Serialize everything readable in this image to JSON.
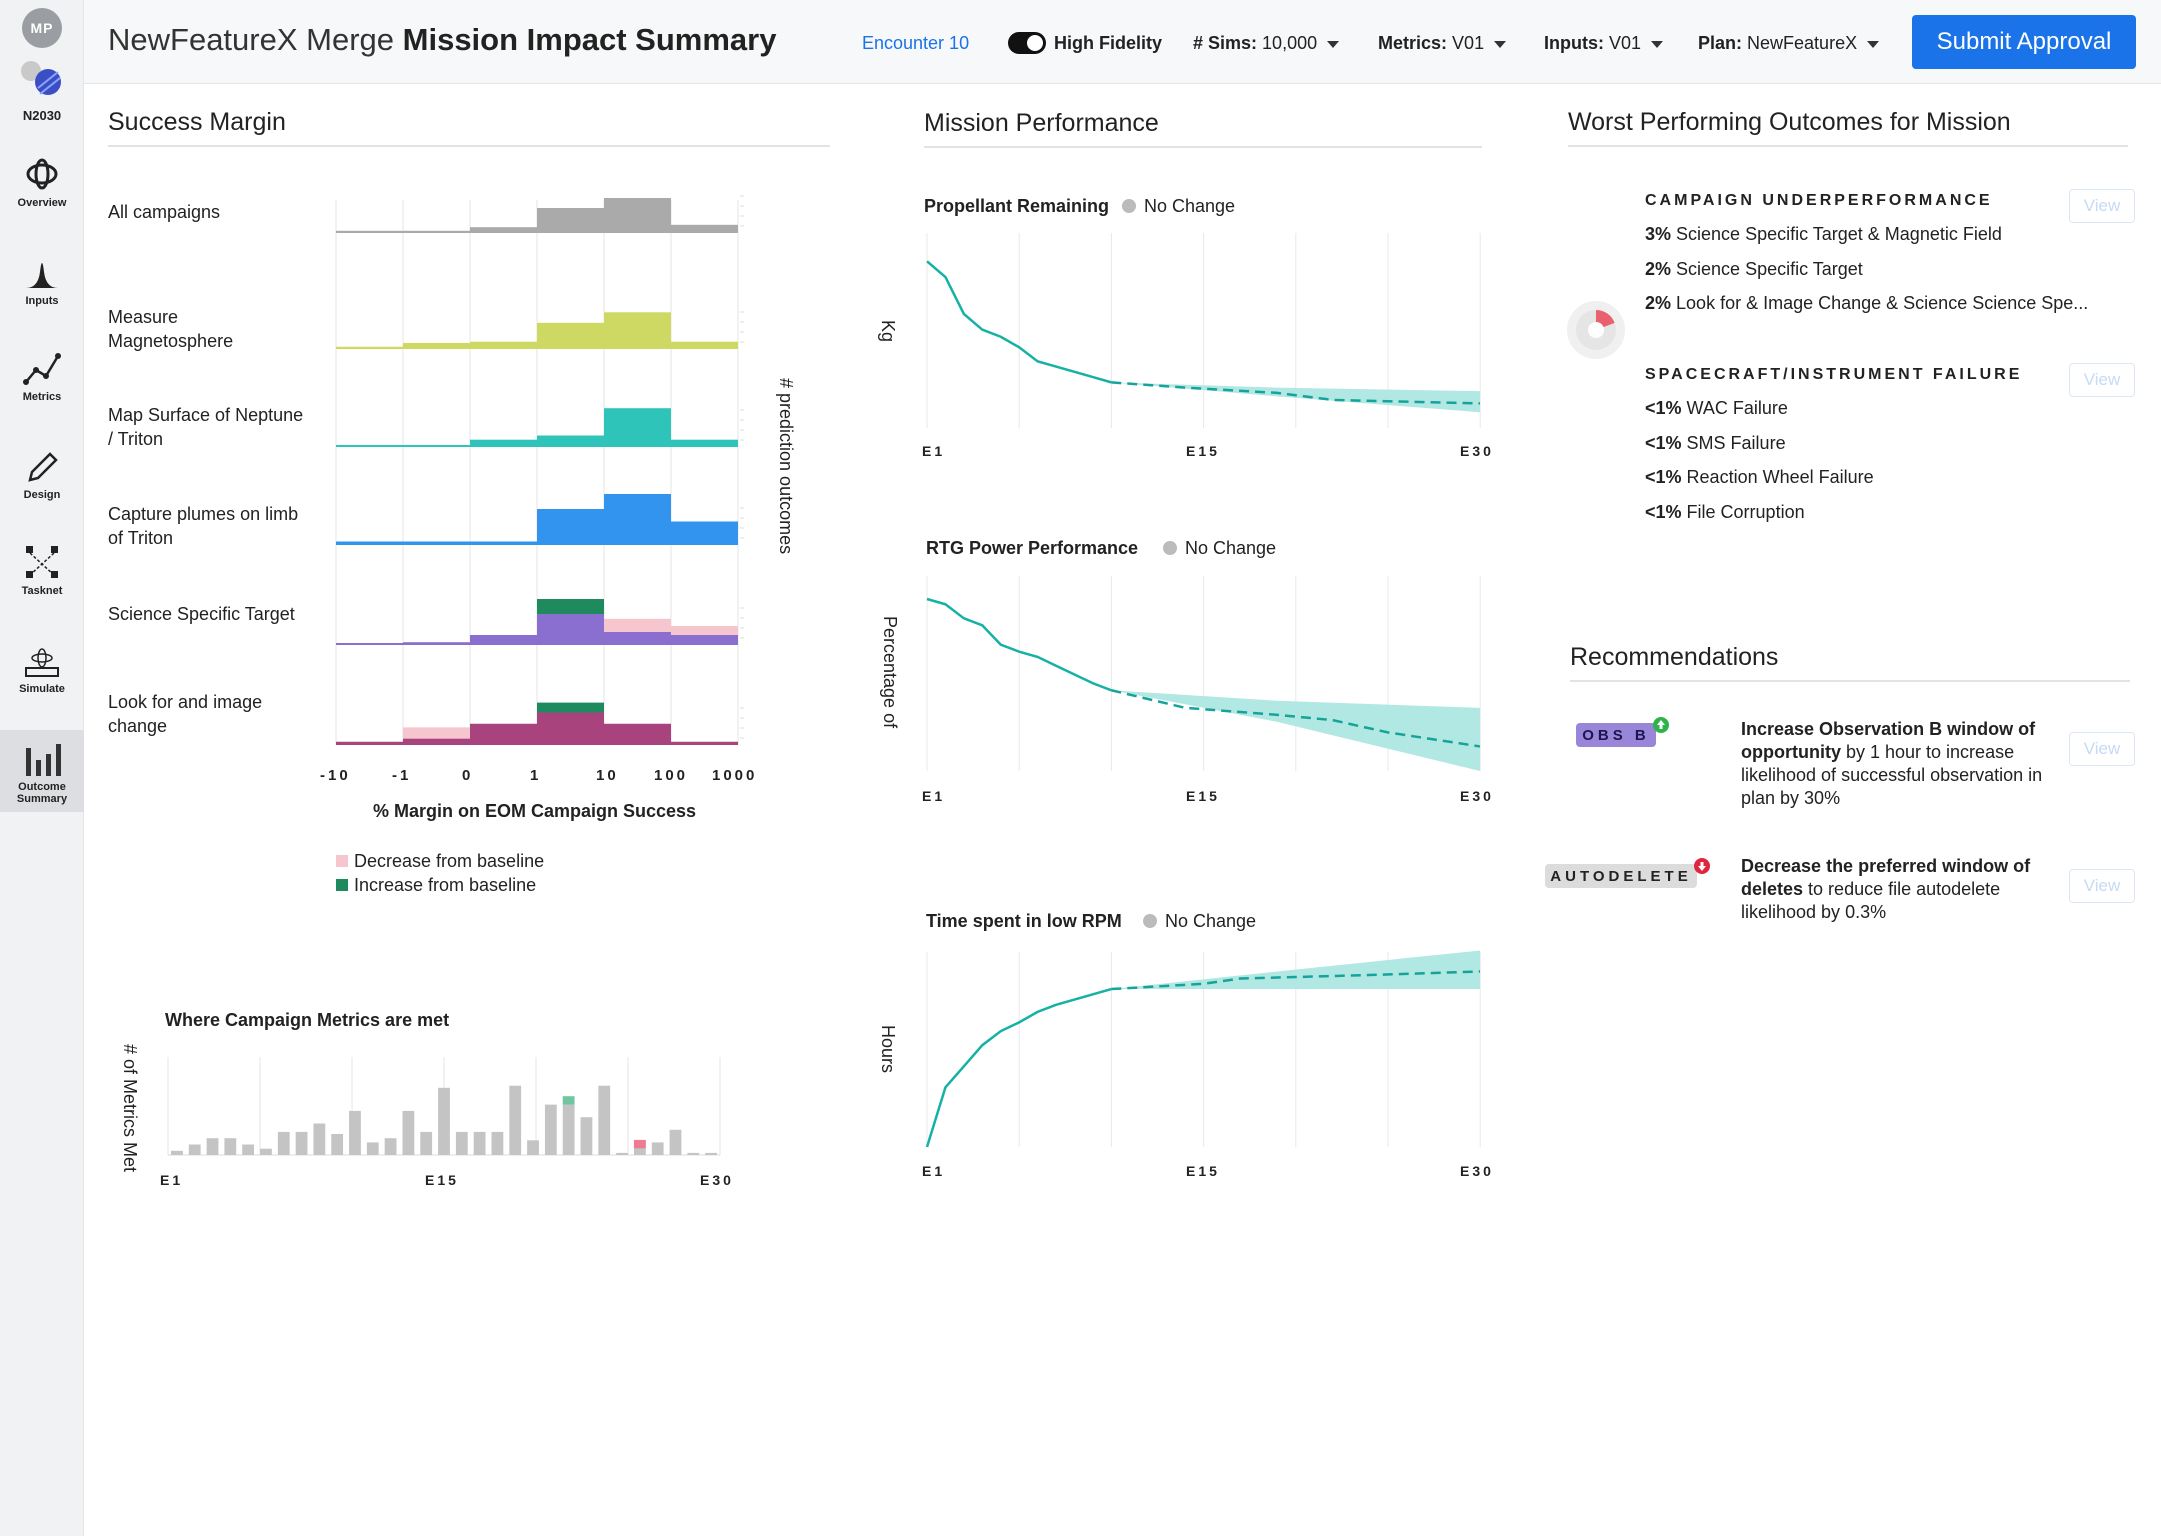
{
  "user": {
    "initials": "MP"
  },
  "project": {
    "name": "N2030"
  },
  "nav": [
    {
      "label": "Overview",
      "icon": "overview-icon"
    },
    {
      "label": "Inputs",
      "icon": "distribution-icon"
    },
    {
      "label": "Metrics",
      "icon": "line-chart-icon"
    },
    {
      "label": "Design",
      "icon": "pencil-icon"
    },
    {
      "label": "Tasknet",
      "icon": "network-icon"
    },
    {
      "label": "Simulate",
      "icon": "simulate-icon"
    },
    {
      "label": "Outcome Summary",
      "icon": "bar-chart-icon",
      "active": true
    }
  ],
  "header": {
    "title_light": "NewFeatureX Merge",
    "title_bold": "Mission Impact Summary",
    "encounter": "Encounter 10",
    "fidelity_label": "High Fidelity",
    "sims_label": "# Sims:",
    "sims_value": "10,000",
    "metrics_label": "Metrics:",
    "metrics_value": "V01",
    "inputs_label": "Inputs:",
    "inputs_value": "V01",
    "plan_label": "Plan:",
    "plan_value": "NewFeatureX",
    "submit_label": "Submit Approval"
  },
  "success_margin": {
    "title": "Success Margin",
    "xlabel": "% Margin on EOM Campaign Success",
    "ylabel": "# prediction outcomes",
    "x_ticks": [
      "-10",
      "-1",
      "0",
      "1",
      "10",
      "100",
      "1000"
    ],
    "legend": {
      "decrease": "Decrease from baseline",
      "increase": "Increase from baseline",
      "decrease_color": "#f6c6cf",
      "increase_color": "#1e8a5e"
    },
    "rows": [
      {
        "label": "All campaigns",
        "color": "#aaaaaa",
        "values": [
          0.03,
          0.03,
          0.12,
          0.6,
          0.85,
          0.18
        ],
        "inc": [
          0,
          0,
          0,
          0,
          0,
          0
        ],
        "dec": [
          0,
          0,
          0,
          0,
          0,
          0
        ]
      },
      {
        "label": "Measure Magnetosphere",
        "color": "#cdd962",
        "values": [
          0.03,
          0.12,
          0.15,
          0.6,
          0.85,
          0.15
        ],
        "inc": [
          0,
          0,
          0,
          0,
          0,
          0
        ],
        "dec": [
          0,
          0,
          0,
          0,
          0,
          0
        ]
      },
      {
        "label": "Map Surface of Neptune / Triton",
        "color": "#2fc4b9",
        "values": [
          0,
          0,
          0.15,
          0.25,
          0.9,
          0.15
        ],
        "inc": [
          0,
          0,
          0,
          0,
          0,
          0
        ],
        "dec": [
          0,
          0,
          0,
          0,
          0,
          0
        ]
      },
      {
        "label": "Capture plumes on limb of Triton",
        "color": "#3394ef",
        "values": [
          0.05,
          0.05,
          0.05,
          0.7,
          1.0,
          0.45
        ],
        "inc": [
          0,
          0,
          0,
          0,
          0,
          0
        ],
        "dec": [
          0,
          0,
          0,
          0,
          0,
          0
        ]
      },
      {
        "label": "Science Specific Target",
        "color": "#8b6fd0",
        "values": [
          0,
          0.03,
          0.15,
          0.5,
          0.2,
          0.15
        ],
        "inc": [
          0,
          0,
          0,
          0.25,
          0,
          0
        ],
        "dec": [
          0,
          0,
          0,
          0,
          0.22,
          0.15
        ]
      },
      {
        "label": "Look for and image change",
        "color": "#a8437e",
        "values": [
          0.05,
          0.12,
          0.45,
          0.7,
          0.45,
          0.05
        ],
        "inc": [
          0,
          0,
          0,
          0.22,
          0,
          0
        ],
        "dec": [
          0,
          0.25,
          0,
          0,
          0,
          0
        ]
      }
    ]
  },
  "campaign_metrics": {
    "title": "Where Campaign Metrics are met",
    "ylabel": "# of Metrics Met",
    "x_ticks": [
      "E1",
      "E15",
      "E30"
    ],
    "values": [
      1,
      2.5,
      4,
      4,
      2.5,
      1.5,
      5.5,
      5.5,
      7.5,
      5,
      10.5,
      3,
      4,
      10.5,
      5.5,
      16,
      5.5,
      5.5,
      5.5,
      16.5,
      3.5,
      12,
      12,
      9,
      16.5,
      0.5,
      3.5,
      3,
      6,
      0.5,
      0.5
    ],
    "inc": [
      0,
      0,
      0,
      0,
      0,
      0,
      0,
      0,
      0,
      0,
      0,
      0,
      0,
      0,
      0,
      0,
      0,
      0,
      0,
      0,
      0,
      0,
      2,
      0,
      0,
      0,
      0,
      0,
      0,
      0,
      0
    ],
    "dec": [
      0,
      0,
      0,
      0,
      0,
      0,
      0,
      0,
      0,
      0,
      0,
      0,
      0,
      0,
      0,
      0,
      0,
      0,
      0,
      0,
      0,
      0,
      0,
      0,
      0,
      0,
      2,
      0,
      0,
      0,
      0
    ]
  },
  "mission_performance": {
    "title": "Mission Performance",
    "x_ticks": [
      "E1",
      "E15",
      "E30"
    ],
    "charts": [
      {
        "title": "Propellant Remaining",
        "status": "No Change",
        "ylabel": "Kg",
        "actual": [
          [
            1,
            0.95
          ],
          [
            2,
            0.86
          ],
          [
            3,
            0.65
          ],
          [
            4,
            0.56
          ],
          [
            5,
            0.52
          ],
          [
            6,
            0.46
          ],
          [
            7,
            0.38
          ],
          [
            8,
            0.35
          ],
          [
            9,
            0.32
          ],
          [
            10,
            0.29
          ],
          [
            11,
            0.26
          ]
        ],
        "forecast": [
          [
            11,
            0.26
          ],
          [
            15,
            0.23
          ],
          [
            20,
            0.2
          ],
          [
            23,
            0.16
          ],
          [
            27,
            0.15
          ],
          [
            31,
            0.14
          ]
        ],
        "band_upper": [
          [
            11,
            0.26
          ],
          [
            20,
            0.23
          ],
          [
            31,
            0.21
          ]
        ],
        "band_lower": [
          [
            11,
            0.26
          ],
          [
            20,
            0.18
          ],
          [
            31,
            0.09
          ]
        ]
      },
      {
        "title": "RTG Power Performance",
        "status": "No Change",
        "ylabel": "Percentage of",
        "actual": [
          [
            1,
            0.98
          ],
          [
            2,
            0.95
          ],
          [
            3,
            0.87
          ],
          [
            4,
            0.83
          ],
          [
            5,
            0.72
          ],
          [
            6,
            0.68
          ],
          [
            7,
            0.65
          ],
          [
            8,
            0.6
          ],
          [
            9,
            0.55
          ],
          [
            10,
            0.5
          ],
          [
            11,
            0.46
          ]
        ],
        "forecast": [
          [
            11,
            0.46
          ],
          [
            15,
            0.36
          ],
          [
            20,
            0.32
          ],
          [
            23,
            0.29
          ],
          [
            26,
            0.22
          ],
          [
            31,
            0.14
          ]
        ],
        "band_upper": [
          [
            11,
            0.46
          ],
          [
            20,
            0.4
          ],
          [
            31,
            0.36
          ]
        ],
        "band_lower": [
          [
            11,
            0.46
          ],
          [
            20,
            0.28
          ],
          [
            31,
            0.0
          ]
        ]
      },
      {
        "title": "Time spent in low RPM",
        "status": "No Change",
        "ylabel": "Hours",
        "actual": [
          [
            1,
            0.0
          ],
          [
            2,
            0.34
          ],
          [
            3,
            0.46
          ],
          [
            4,
            0.58
          ],
          [
            5,
            0.66
          ],
          [
            6,
            0.71
          ],
          [
            7,
            0.77
          ],
          [
            8,
            0.81
          ],
          [
            9,
            0.84
          ],
          [
            10,
            0.87
          ],
          [
            11,
            0.9
          ]
        ],
        "forecast": [
          [
            11,
            0.9
          ],
          [
            16,
            0.93
          ],
          [
            18,
            0.96
          ],
          [
            25,
            0.98
          ],
          [
            31,
            1.0
          ]
        ],
        "band_upper": [
          [
            11,
            0.9
          ],
          [
            20,
            1.0
          ],
          [
            31,
            1.12
          ]
        ],
        "band_lower": [
          [
            11,
            0.9
          ],
          [
            20,
            0.9
          ],
          [
            31,
            0.9
          ]
        ]
      }
    ]
  },
  "worst": {
    "title": "Worst Performing Outcomes for Mission",
    "view_label": "View",
    "groups": [
      {
        "category": "CAMPAIGN UNDERPERFORMANCE",
        "items": [
          {
            "pct": "3%",
            "text": "Science Specific Target & Magnetic Field"
          },
          {
            "pct": "2%",
            "text": "Science Specific Target"
          },
          {
            "pct": "2%",
            "text": "Look for & Image Change & Science Science Spe..."
          }
        ]
      },
      {
        "category": "SPACECRAFT/INSTRUMENT FAILURE",
        "items": [
          {
            "pct": "<1%",
            "text": "WAC Failure"
          },
          {
            "pct": "<1%",
            "text": "SMS Failure"
          },
          {
            "pct": "<1%",
            "text": "Reaction Wheel Failure"
          },
          {
            "pct": "<1%",
            "text": "File Corruption"
          }
        ]
      }
    ]
  },
  "recommendations": {
    "title": "Recommendations",
    "view_label": "View",
    "items": [
      {
        "badge": "OBS B",
        "badge_color": "#9a86d8",
        "indicator_color": "#2db34a",
        "bold": "Increase Observation B window of opportunity",
        "rest": " by 1 hour to increase likelihood of successful observation in plan by 30%"
      },
      {
        "badge": "AUTODELETE",
        "badge_color": "#dcdcdc",
        "indicator_color": "#e0263f",
        "bold": "Decrease the preferred window of deletes",
        "rest": " to reduce file autodelete likelihood by 0.3%"
      }
    ]
  }
}
